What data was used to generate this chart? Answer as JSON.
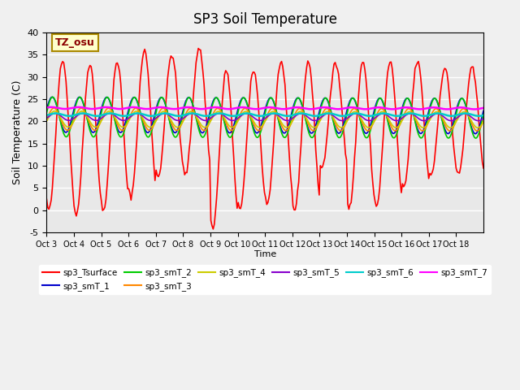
{
  "title": "SP3 Soil Temperature",
  "ylabel": "Soil Temperature (C)",
  "xlabel": "Time",
  "annotation": "TZ_osu",
  "ylim": [
    -5,
    40
  ],
  "plot_bg_color": "#e8e8e8",
  "series_names": [
    "sp3_Tsurface",
    "sp3_smT_1",
    "sp3_smT_2",
    "sp3_smT_3",
    "sp3_smT_4",
    "sp3_smT_5",
    "sp3_smT_6",
    "sp3_smT_7"
  ],
  "series_colors": [
    "#ff0000",
    "#0000cc",
    "#00cc00",
    "#ff8800",
    "#cccc00",
    "#8800cc",
    "#00cccc",
    "#ff00ff"
  ],
  "series_lw": [
    1.2,
    1.2,
    1.2,
    1.2,
    1.2,
    1.2,
    1.8,
    1.8
  ],
  "xtick_labels": [
    "Oct 3",
    "Oct 4",
    "Oct 5",
    "Oct 6",
    "Oct 7",
    "Oct 8",
    "Oct 9",
    "Oct 10",
    "Oct 11",
    "Oct 12",
    "Oct 13",
    "Oct 14",
    "Oct 15",
    "Oct 16",
    "Oct 17",
    "Oct 18"
  ],
  "ytick_values": [
    -5,
    0,
    5,
    10,
    15,
    20,
    25,
    30,
    35,
    40
  ],
  "n_days": 16
}
